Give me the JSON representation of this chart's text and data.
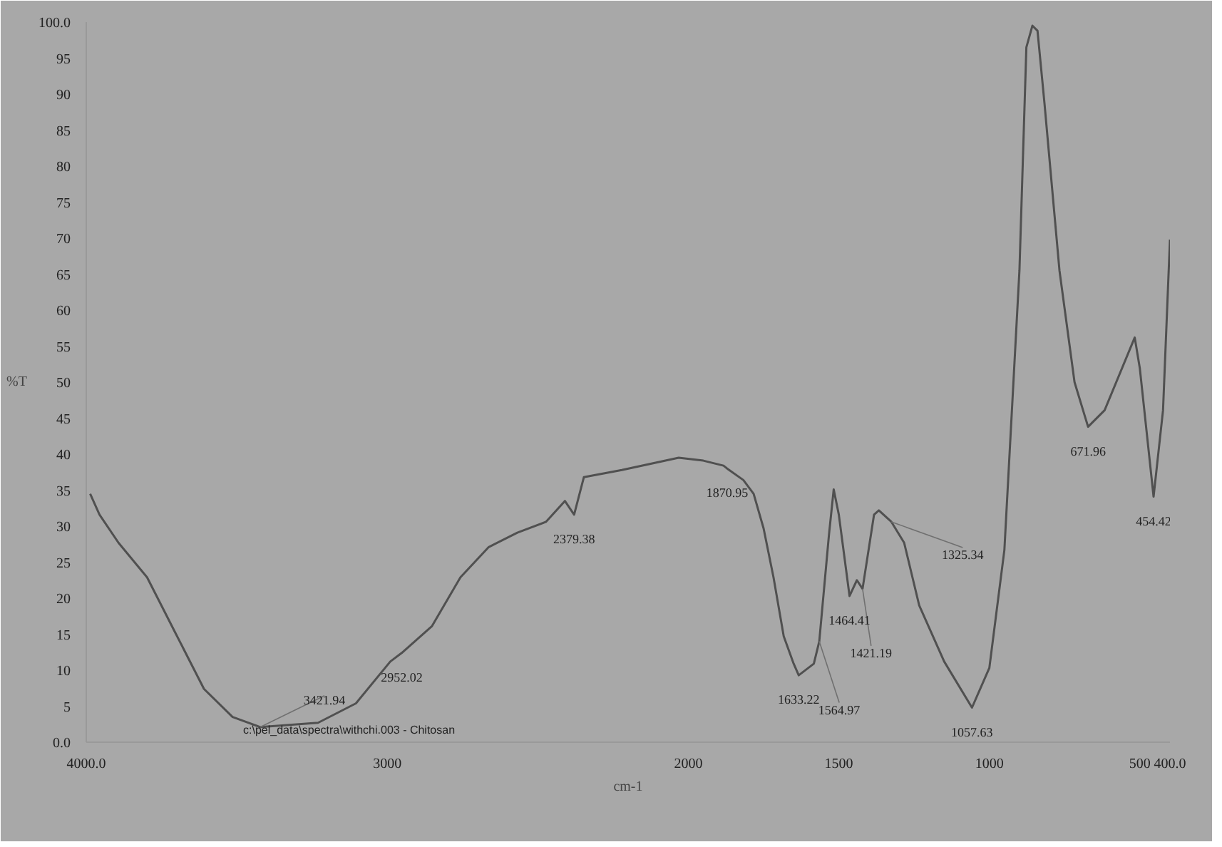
{
  "chart_data": {
    "type": "line",
    "xlabel": "cm-1",
    "ylabel": "%T",
    "xlim": [
      4000,
      400
    ],
    "ylim": [
      0,
      100
    ],
    "xticks": [
      {
        "value": 4000,
        "label": "4000.0"
      },
      3000,
      2000,
      1500,
      1000,
      500,
      {
        "value": 400,
        "label": "400.0"
      }
    ],
    "yticks": [
      {
        "value": 0,
        "label": "0.0"
      },
      5,
      10,
      15,
      20,
      25,
      30,
      35,
      40,
      45,
      50,
      55,
      60,
      65,
      70,
      75,
      80,
      85,
      90,
      95,
      {
        "value": 100,
        "label": "100.0"
      }
    ],
    "grid": false,
    "marker": "none",
    "line_style": "solid",
    "series": [
      {
        "color": "#505050",
        "x": [
          3987,
          3956,
          3893,
          3798,
          3703,
          3609,
          3514,
          3421.94,
          3230,
          3104,
          2990,
          2952.02,
          2852,
          2757,
          2663,
          2568,
          2473,
          2410,
          2379.38,
          2347,
          2221,
          2032,
          1950,
          1883,
          1870.95,
          1817,
          1783,
          1750,
          1717,
          1683,
          1650,
          1633.22,
          1583,
          1564.97,
          1533,
          1517,
          1500,
          1464.41,
          1440,
          1421.19,
          1383,
          1367,
          1325.34,
          1283,
          1233,
          1150,
          1057.63,
          1000,
          950,
          900,
          877,
          857,
          840,
          817,
          767,
          717,
          671.96,
          617,
          517,
          500,
          454.42,
          423,
          400
        ],
        "values": [
          34.5,
          31.6,
          27.7,
          22.9,
          15.1,
          7.4,
          3.5,
          2.1,
          2.7,
          5.4,
          11.2,
          12.4,
          16.1,
          22.9,
          27.1,
          29.1,
          30.6,
          33.5,
          31.6,
          36.8,
          37.8,
          39.5,
          39.1,
          38.4,
          38,
          36.4,
          34.5,
          29.7,
          22.9,
          14.7,
          10.9,
          9.3,
          10.9,
          14,
          28.7,
          35.1,
          31.6,
          20.3,
          22.5,
          21.3,
          31.6,
          32.2,
          30.6,
          27.7,
          19,
          11.2,
          4.8,
          10.3,
          26.7,
          65.5,
          96.5,
          99.5,
          98.8,
          88.8,
          65.5,
          50,
          43.8,
          46.1,
          56.2,
          51.9,
          34.1,
          46.1,
          69.8
        ]
      }
    ],
    "annotations": [
      {
        "text": "3421.94",
        "x": 3421.94,
        "y": 2.1
      },
      {
        "text": "2952.02",
        "x": 2952.02,
        "y": 12.4
      },
      {
        "text": "2379.38",
        "x": 2379.38,
        "y": 31.6
      },
      {
        "text": "1870.95",
        "x": 1870.95,
        "y": 38
      },
      {
        "text": "1633.22",
        "x": 1633.22,
        "y": 9.3
      },
      {
        "text": "1564.97",
        "x": 1564.97,
        "y": 14
      },
      {
        "text": "1464.41",
        "x": 1464.41,
        "y": 20.3
      },
      {
        "text": "1421.19",
        "x": 1421.19,
        "y": 21.3
      },
      {
        "text": "1325.34",
        "x": 1325.34,
        "y": 30.6
      },
      {
        "text": "1057.63",
        "x": 1057.63,
        "y": 4.8
      },
      {
        "text": "671.96",
        "x": 671.96,
        "y": 43.8
      },
      {
        "text": "454.42",
        "x": 454.42,
        "y": 34.1
      },
      "c:\\pel_data\\spectra\\withchi.003 - Chitosan"
    ]
  }
}
